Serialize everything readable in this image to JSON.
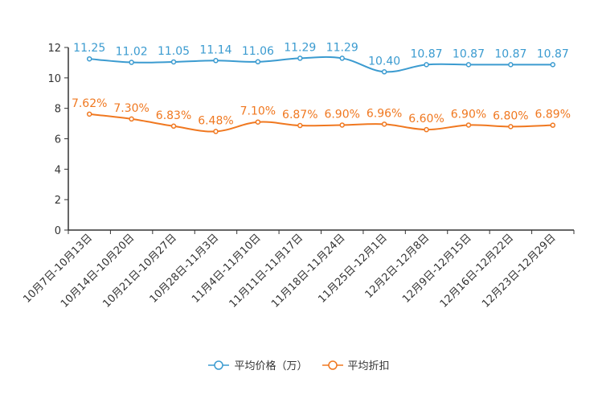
{
  "chart_data": {
    "type": "line",
    "title": "",
    "xlabel": "",
    "ylabel": "",
    "ylim": [
      0,
      12
    ],
    "yticks": [
      "0",
      "2",
      "4",
      "6",
      "8",
      "10",
      "12"
    ],
    "categories": [
      "10月7日-10月13日",
      "10月14日-10月20日",
      "10月21日-10月27日",
      "10月28日-11月3日",
      "11月4日-11月10日",
      "11月11日-11月17日",
      "11月18日-11月24日",
      "11月25日-12月1日",
      "12月2日-12月8日",
      "12月9日-12月15日",
      "12月16日-12月22日",
      "12月23日-12月29日"
    ],
    "series": [
      {
        "name": "平均价格（万）",
        "color": "#3b9bd0",
        "values": [
          11.25,
          11.02,
          11.05,
          11.14,
          11.06,
          11.29,
          11.29,
          10.4,
          10.87,
          10.87,
          10.87,
          10.87
        ],
        "labels": [
          "11.25",
          "11.02",
          "11.05",
          "11.14",
          "11.06",
          "11.29",
          "11.29",
          "10.40",
          "10.87",
          "10.87",
          "10.87",
          "10.87"
        ]
      },
      {
        "name": "平均折扣",
        "color": "#f07820",
        "values": [
          7.62,
          7.3,
          6.83,
          6.48,
          7.1,
          6.87,
          6.9,
          6.96,
          6.6,
          6.9,
          6.8,
          6.89
        ],
        "labels": [
          "7.62%",
          "7.30%",
          "6.83%",
          "6.48%",
          "7.10%",
          "6.87%",
          "6.90%",
          "6.96%",
          "6.60%",
          "6.90%",
          "6.80%",
          "6.89%"
        ]
      }
    ],
    "legend": "bottom-center",
    "grid": false
  }
}
